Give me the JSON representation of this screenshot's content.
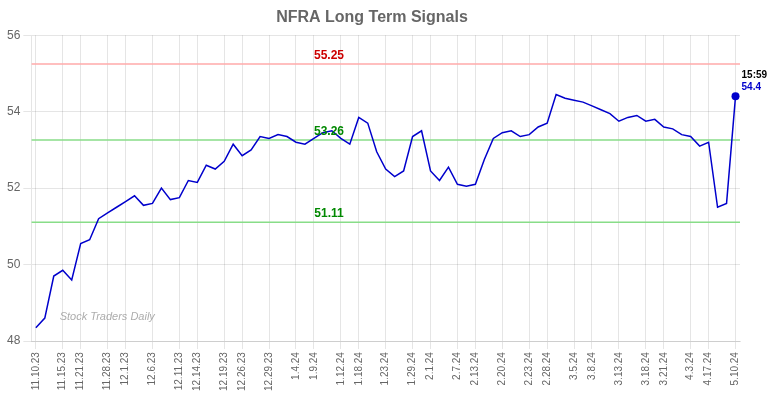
{
  "chart_data": {
    "type": "line",
    "title": "NFRA Long Term Signals",
    "categories": [
      "11.10.23",
      null,
      null,
      "11.15.23",
      null,
      "11.21.23",
      null,
      null,
      "11.28.23",
      null,
      "12.1.23",
      null,
      null,
      "12.6.23",
      null,
      null,
      "12.11.23",
      null,
      "12.14.23",
      null,
      null,
      "12.19.23",
      null,
      "12.26.23",
      null,
      null,
      "12.29.23",
      null,
      null,
      "1.4.24",
      null,
      "1.9.24",
      null,
      null,
      "1.12.24",
      null,
      "1.18.24",
      null,
      null,
      "1.23.24",
      null,
      null,
      "1.29.24",
      null,
      "2.1.24",
      null,
      null,
      "2.7.24",
      null,
      "2.13.24",
      null,
      null,
      "2.20.24",
      null,
      null,
      "2.23.24",
      null,
      "2.28.24",
      null,
      null,
      "3.5.24",
      null,
      "3.8.24",
      null,
      null,
      "3.13.24",
      null,
      null,
      "3.18.24",
      null,
      "3.21.24",
      null,
      null,
      "4.3.24",
      null,
      "4.17.24",
      null,
      null,
      "5.10.24"
    ],
    "values": [
      48.35,
      48.6,
      49.7,
      49.85,
      49.6,
      50.55,
      50.65,
      51.2,
      51.35,
      51.5,
      51.65,
      51.8,
      51.55,
      51.6,
      52.0,
      51.7,
      51.75,
      52.2,
      52.15,
      52.6,
      52.5,
      52.7,
      53.15,
      52.85,
      53.0,
      53.35,
      53.3,
      53.4,
      53.35,
      53.2,
      53.15,
      53.3,
      53.45,
      53.5,
      53.3,
      53.15,
      53.85,
      53.7,
      52.95,
      52.5,
      52.3,
      52.45,
      53.35,
      53.5,
      52.45,
      52.2,
      52.55,
      52.1,
      52.05,
      52.1,
      52.75,
      53.3,
      53.45,
      53.5,
      53.35,
      53.4,
      53.6,
      53.7,
      54.45,
      54.35,
      54.3,
      54.25,
      54.15,
      54.05,
      53.95,
      53.75,
      53.85,
      53.9,
      53.75,
      53.8,
      53.6,
      53.55,
      53.4,
      53.35,
      53.1,
      53.2,
      51.5,
      51.6,
      54.4
    ],
    "color": "#0000cc",
    "reference_lines": [
      {
        "value": 55.25,
        "label": "55.25",
        "color": "#ffaaaa",
        "label_color": "#cc0000"
      },
      {
        "value": 53.26,
        "label": "53.26",
        "color": "#88dd88",
        "label_color": "#008800"
      },
      {
        "value": 51.11,
        "label": "51.11",
        "color": "#88dd88",
        "label_color": "#008800"
      }
    ],
    "last_point_labels": [
      "15:59",
      "54.4"
    ],
    "watermark": "Stock Traders Daily",
    "ylim": [
      48,
      56
    ],
    "yticks": [
      48,
      50,
      52,
      54,
      56
    ],
    "grid": true
  }
}
